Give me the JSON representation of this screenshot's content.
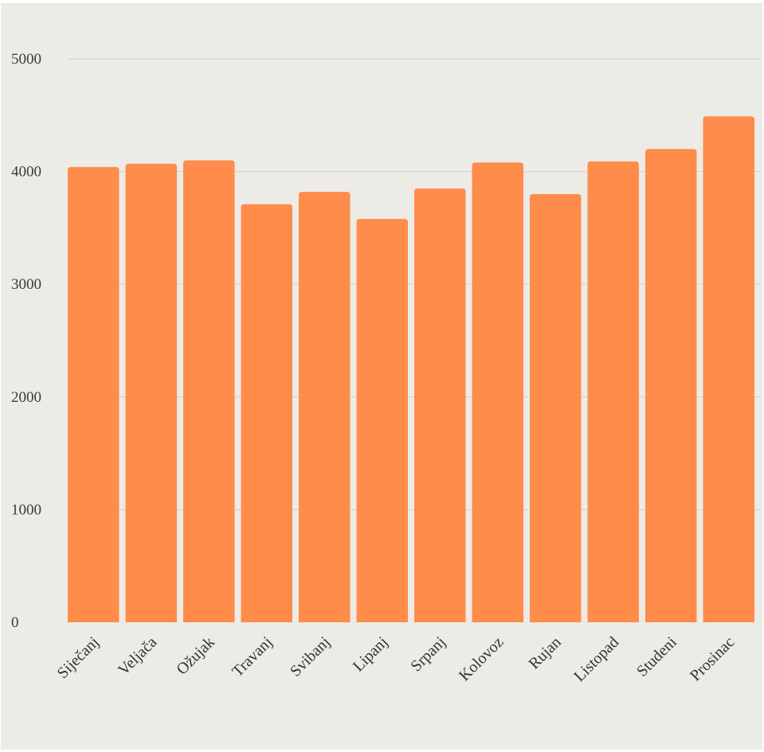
{
  "chart_data": {
    "type": "bar",
    "categories": [
      "Siječanj",
      "Veljača",
      "Ožujak",
      "Travanj",
      "Svibanj",
      "Lipanj",
      "Srpanj",
      "Kolovoz",
      "Rujan",
      "Listopad",
      "Studeni",
      "Prosinac"
    ],
    "series": [
      {
        "values": [
          4040,
          4070,
          4100,
          3710,
          3820,
          3580,
          3850,
          4080,
          3800,
          4090,
          4200,
          4490
        ],
        "color": "#ff8c4a"
      }
    ],
    "yticks": [
      "0",
      "1000",
      "2000",
      "3000",
      "4000",
      "5000"
    ],
    "ylim": [
      0,
      5000
    ],
    "grid": true,
    "legend": "none",
    "background": "#ecebe6",
    "bar_color": "#ff8c4a"
  }
}
